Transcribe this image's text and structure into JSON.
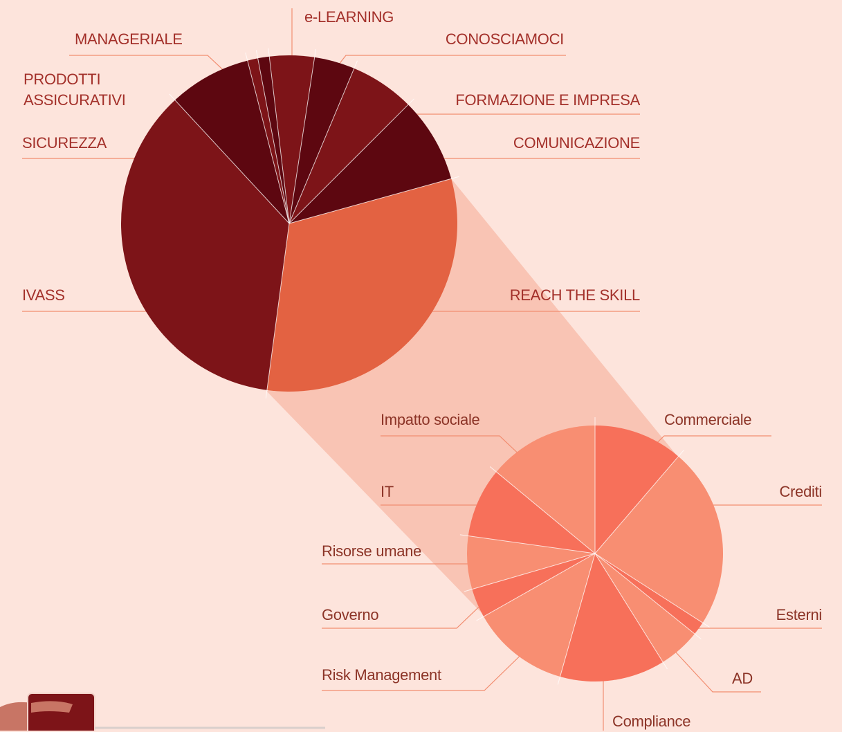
{
  "chart_data": {
    "type": "pie-of-pie",
    "pies": [
      {
        "categories": [
          "e-LEARNING",
          "CONOSCIAMOCI",
          "FORMAZIONE E IMPRESA",
          "COMUNICAZIONE",
          "REACH THE SKILL",
          "IVASS",
          "SICUREZZA",
          "PRODOTTI\nASSICURATIVI",
          "MANAGERIALE"
        ],
        "values": [
          4.3,
          3.9,
          6.2,
          8.2,
          31.4,
          36.0,
          7.9,
          1.0,
          1.1
        ],
        "colors": [
          "#7d1418",
          "#5d0710",
          "#7d1418",
          "#5d0710",
          "#e36242",
          "#7d1418",
          "#5d0710",
          "#7d1418",
          "#5d0710"
        ]
      },
      {
        "categories": [
          "Commerciale",
          "Crediti",
          "Esterni",
          "AD",
          "Compliance",
          "Risk Management",
          "Governo",
          "Risorse umane",
          "IT",
          "Impatto sociale"
        ],
        "values": [
          11.3,
          22.8,
          1.7,
          5.3,
          13.3,
          12.4,
          3.7,
          6.7,
          8.8,
          14.0
        ],
        "colors": [
          "#f7705a",
          "#f88e72",
          "#f7705a",
          "#f88e72",
          "#f7705a",
          "#f88e72",
          "#f7705a",
          "#f88e72",
          "#f7705a",
          "#f88e72"
        ]
      }
    ]
  }
}
